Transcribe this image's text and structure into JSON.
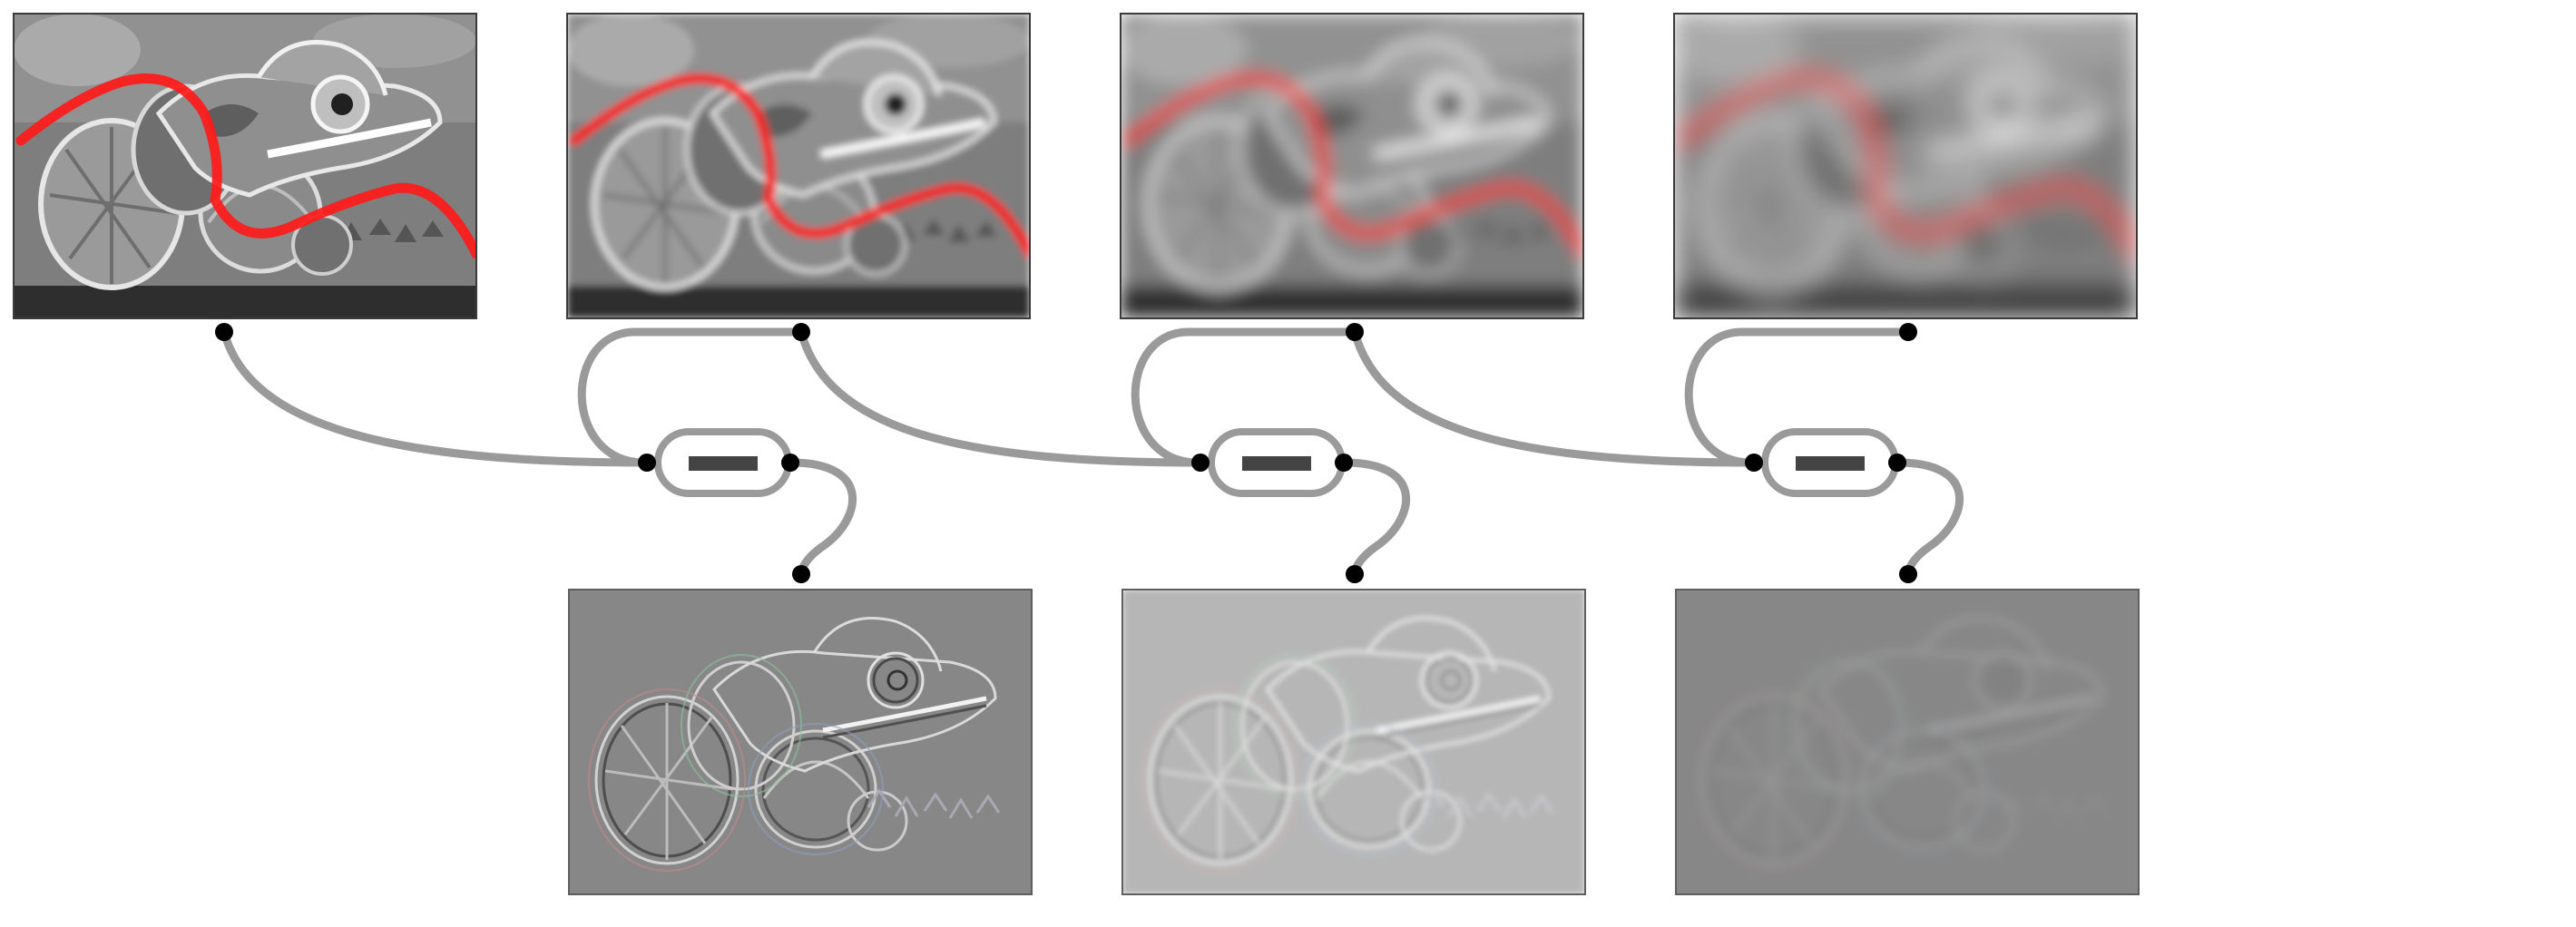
{
  "diagram": {
    "type": "laplacian-pyramid",
    "blurred_levels": [
      {
        "blur_std": 0,
        "content": "chameleon-grayscale-with-red-curve"
      },
      {
        "blur_std": 4,
        "content": "chameleon-grayscale-with-red-curve"
      },
      {
        "blur_std": 9,
        "content": "chameleon-grayscale-with-red-curve"
      },
      {
        "blur_std": 14,
        "content": "chameleon-grayscale-with-red-curve"
      }
    ],
    "difference_levels": [
      {
        "contrast": 1.0,
        "blur_std": 0,
        "content": "band-pass-detail"
      },
      {
        "contrast": 0.6,
        "blur_std": 3,
        "content": "band-pass-detail"
      },
      {
        "contrast": 0.35,
        "blur_std": 6,
        "content": "band-pass-detail"
      }
    ],
    "operator_icon": "minus-icon",
    "colors": {
      "connector": "#9a9a9a",
      "dot": "#000000",
      "curve": "#ff1a1a",
      "difference_bg": "#878787",
      "operator_fill": "#444444"
    }
  }
}
